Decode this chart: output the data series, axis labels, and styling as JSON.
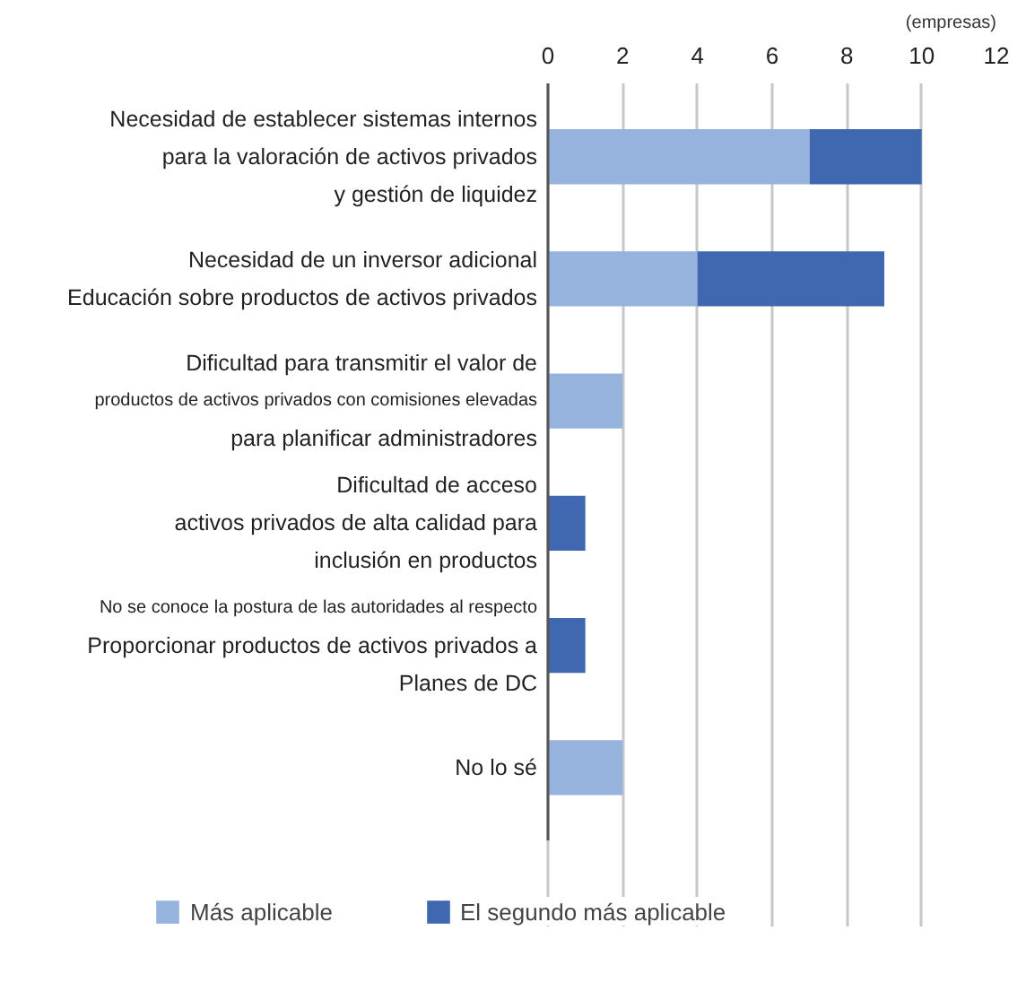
{
  "chart_data": {
    "type": "bar",
    "orientation": "horizontal",
    "stacked": true,
    "annotations": [
      "(empresas)"
    ],
    "categories": [
      "Necesidad de establecer sistemas internos\npara la valoración de activos privados\ny gestión de liquidez",
      "Necesidad de un inversor adicional\nEducación sobre productos de activos privados",
      "Dificultad para transmitir el valor de\nproductos de activos privados con comisiones elevadas\npara planificar administradores",
      "Dificultad de acceso\nactivos privados de alta calidad para\ninclusión en productos",
      "No se conoce la postura de las autoridades al respecto\nProporcionar productos de activos privados a\nPlanes de DC",
      "No lo sé"
    ],
    "series": [
      {
        "name": "Más aplicable",
        "color": "#95b3dc",
        "values": [
          7,
          4,
          2,
          null,
          null,
          2
        ]
      },
      {
        "name": "El segundo más aplicable",
        "color": "#3f68b0",
        "values": [
          3,
          5,
          null,
          1,
          1,
          null
        ]
      }
    ],
    "xlim": [
      0,
      12
    ],
    "xticks": [
      0,
      2,
      4,
      6,
      8,
      10,
      12
    ],
    "grid": "x",
    "legend": "bottom"
  }
}
